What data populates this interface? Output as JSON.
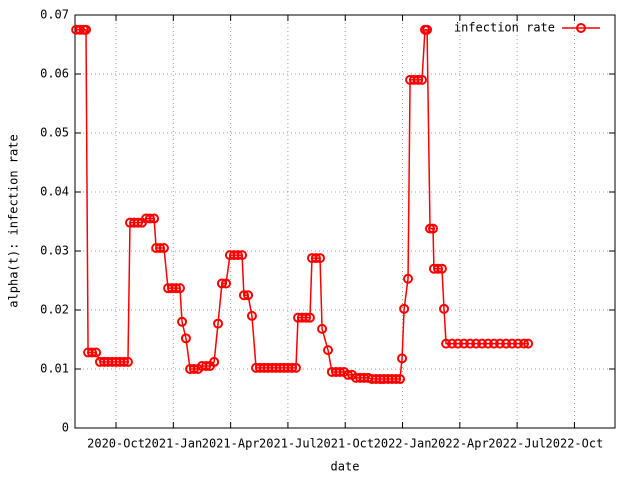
{
  "chart_data": {
    "type": "line",
    "xlabel": "date",
    "ylabel": "alpha(t): infection rate",
    "grid": true,
    "legend": "upper right",
    "xlim": [
      2020.571,
      2022.927
    ],
    "ylim": [
      0,
      0.07
    ],
    "yticks": [
      0,
      0.01,
      0.02,
      0.03,
      0.04,
      0.05,
      0.06,
      0.07
    ],
    "xticks": [
      {
        "value": 2020.75,
        "label": "2020-Oct"
      },
      {
        "value": 2021.0,
        "label": "2021-Jan"
      },
      {
        "value": 2021.25,
        "label": "2021-Apr"
      },
      {
        "value": 2021.5,
        "label": "2021-Jul"
      },
      {
        "value": 2021.75,
        "label": "2021-Oct"
      },
      {
        "value": 2022.0,
        "label": "2022-Jan"
      },
      {
        "value": 2022.25,
        "label": "2022-Apr"
      },
      {
        "value": 2022.5,
        "label": "2022-Jul"
      },
      {
        "value": 2022.75,
        "label": "2022-Oct"
      }
    ],
    "series": [
      {
        "name": "infection rate",
        "color": "#ff0000",
        "x": [
          2020.576,
          2020.593,
          2020.61,
          2020.619,
          2020.628,
          2020.645,
          2020.663,
          2020.68,
          2020.698,
          2020.715,
          2020.733,
          2020.75,
          2020.767,
          2020.785,
          2020.802,
          2020.811,
          2020.829,
          2020.846,
          2020.863,
          2020.881,
          2020.898,
          2020.916,
          2020.925,
          2020.942,
          2020.959,
          2020.977,
          2020.994,
          2021.012,
          2021.029,
          2021.038,
          2021.055,
          2021.073,
          2021.09,
          2021.108,
          2021.125,
          2021.143,
          2021.16,
          2021.178,
          2021.195,
          2021.212,
          2021.23,
          2021.247,
          2021.265,
          2021.282,
          2021.3,
          2021.308,
          2021.326,
          2021.343,
          2021.361,
          2021.378,
          2021.396,
          2021.413,
          2021.431,
          2021.448,
          2021.466,
          2021.483,
          2021.5,
          2021.518,
          2021.535,
          2021.544,
          2021.561,
          2021.579,
          2021.596,
          2021.605,
          2021.622,
          2021.64,
          2021.649,
          2021.675,
          2021.692,
          2021.71,
          2021.727,
          2021.745,
          2021.762,
          2021.78,
          2021.797,
          2021.815,
          2021.832,
          2021.85,
          2021.867,
          2021.884,
          2021.902,
          2021.919,
          2021.937,
          2021.954,
          2021.972,
          2021.989,
          2021.998,
          2022.007,
          2022.024,
          2022.033,
          2022.05,
          2022.068,
          2022.085,
          2022.098,
          2022.107,
          2022.12,
          2022.133,
          2022.137,
          2022.155,
          2022.172,
          2022.181,
          2022.19,
          2022.216,
          2022.242,
          2022.268,
          2022.295,
          2022.321,
          2022.347,
          2022.373,
          2022.399,
          2022.425,
          2022.452,
          2022.478,
          2022.504,
          2022.53,
          2022.548
        ],
        "values": [
          0.0675,
          0.0675,
          0.0675,
          0.0675,
          0.0128,
          0.0128,
          0.0128,
          0.0112,
          0.0112,
          0.0112,
          0.0112,
          0.0112,
          0.0112,
          0.0112,
          0.0112,
          0.0348,
          0.0348,
          0.0348,
          0.0348,
          0.0355,
          0.0355,
          0.0355,
          0.0305,
          0.0305,
          0.0305,
          0.0237,
          0.0237,
          0.0237,
          0.0237,
          0.018,
          0.0152,
          0.01,
          0.01,
          0.01,
          0.0105,
          0.0105,
          0.0105,
          0.0112,
          0.0177,
          0.0245,
          0.0245,
          0.0293,
          0.0293,
          0.0293,
          0.0293,
          0.0225,
          0.0225,
          0.019,
          0.0102,
          0.0102,
          0.0102,
          0.0102,
          0.0102,
          0.0102,
          0.0102,
          0.0102,
          0.0102,
          0.0102,
          0.0102,
          0.0187,
          0.0187,
          0.0187,
          0.0187,
          0.0288,
          0.0288,
          0.0288,
          0.0168,
          0.0132,
          0.0095,
          0.0095,
          0.0095,
          0.0095,
          0.009,
          0.009,
          0.0085,
          0.0085,
          0.0085,
          0.0085,
          0.0083,
          0.0083,
          0.0083,
          0.0083,
          0.0083,
          0.0083,
          0.0083,
          0.0083,
          0.0118,
          0.0202,
          0.0253,
          0.059,
          0.059,
          0.059,
          0.059,
          0.0675,
          0.0675,
          0.0338,
          0.0338,
          0.027,
          0.027,
          0.027,
          0.0202,
          0.0143,
          0.0143,
          0.0143,
          0.0143,
          0.0143,
          0.0143,
          0.0143,
          0.0143,
          0.0143,
          0.0143,
          0.0143,
          0.0143,
          0.0143,
          0.0143,
          0.0143
        ]
      }
    ]
  }
}
